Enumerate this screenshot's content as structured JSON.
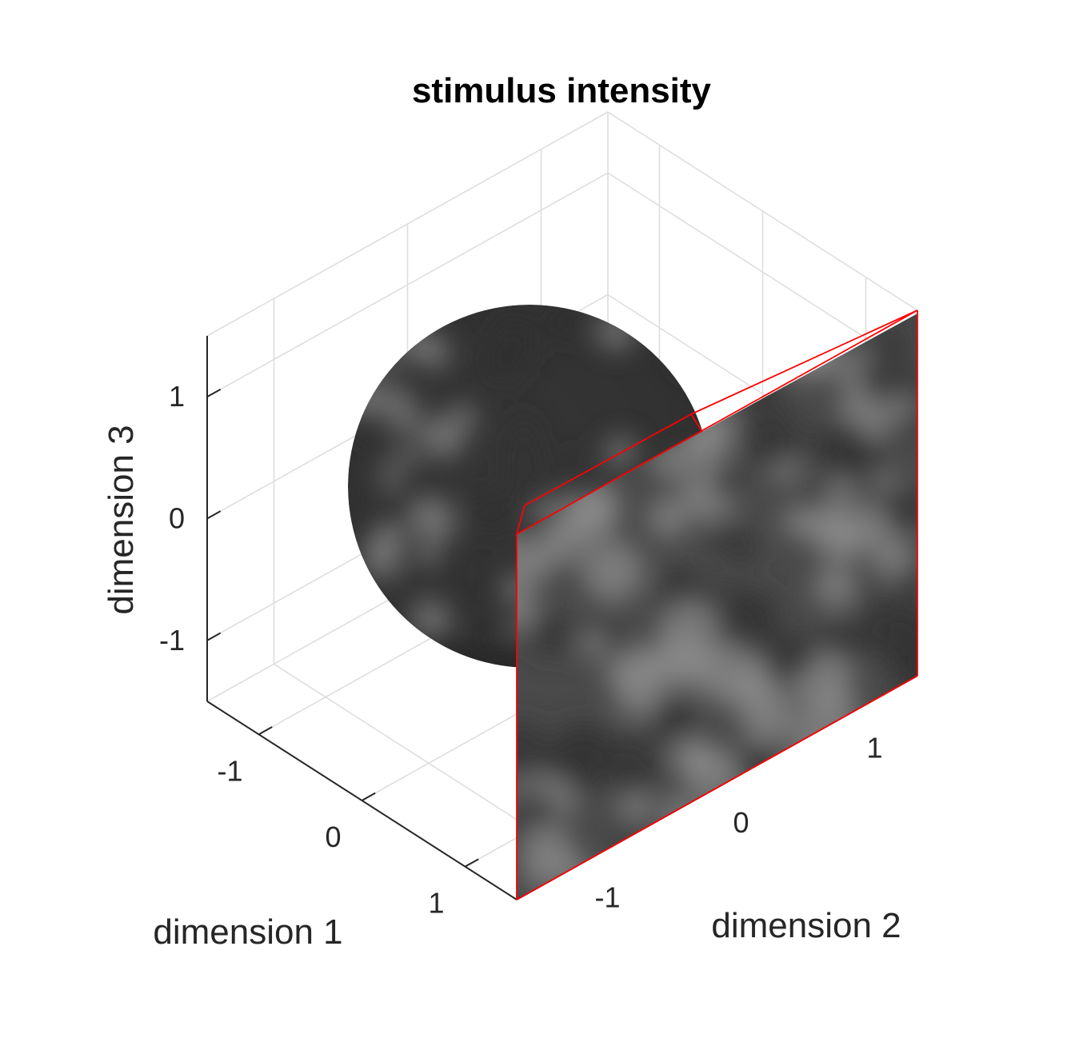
{
  "chart_data": {
    "type": "surface3d",
    "title": "stimulus intensity",
    "xlabel": "dimension 1",
    "ylabel": "dimension 2",
    "zlabel": "dimension 3",
    "xticks": [
      "-1",
      "0",
      "1"
    ],
    "yticks": [
      "-1",
      "0",
      "1"
    ],
    "zticks": [
      "-1",
      "0",
      "1"
    ],
    "xlim": [
      -1.5,
      1.5
    ],
    "ylim": [
      -1.5,
      1.5
    ],
    "zlim": [
      -1.5,
      1.5
    ],
    "grid": true,
    "colormap": "gray",
    "objects": [
      {
        "kind": "sphere",
        "center": [
          0,
          0,
          0
        ],
        "radius": 1,
        "shading": "interp"
      },
      {
        "kind": "plane",
        "x": 1.5,
        "y_range": [
          -1.5,
          1.5
        ],
        "z_range": [
          -1.5,
          1.5
        ],
        "edge_color": "#ff0000"
      }
    ],
    "colors": {
      "edge": "#ff0000",
      "grid": "#dedede",
      "axis": "#262626",
      "surface_dark": "#333333",
      "surface_light": "#8c8c8c"
    }
  }
}
